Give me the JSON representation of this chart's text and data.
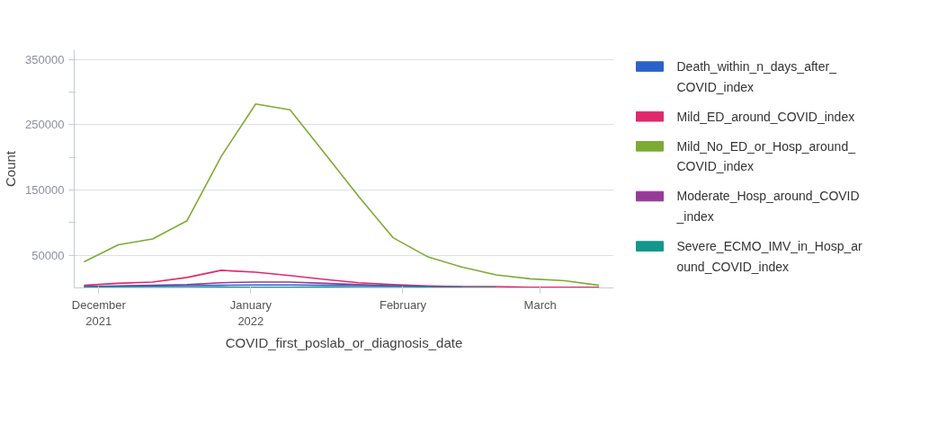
{
  "chart_data": {
    "type": "line",
    "xlabel": "COVID_first_poslab_or_diagnosis_date",
    "ylabel": "Count",
    "x": [
      "2021-11-28",
      "2021-12-05",
      "2021-12-12",
      "2021-12-19",
      "2021-12-26",
      "2022-01-02",
      "2022-01-09",
      "2022-01-16",
      "2022-01-23",
      "2022-01-30",
      "2022-02-06",
      "2022-02-13",
      "2022-02-20",
      "2022-02-27",
      "2022-03-06",
      "2022-03-13"
    ],
    "series": [
      {
        "name": "Death_within_n_days_after_COVID_index",
        "color": "#2a62c9",
        "values": [
          2000,
          2500,
          3000,
          3500,
          4000,
          4500,
          4500,
          4000,
          3500,
          3000,
          2500,
          null,
          null,
          null,
          null,
          null
        ]
      },
      {
        "name": "Mild_ED_around_COVID_index",
        "color": "#e0296b",
        "values": [
          4000,
          7000,
          9000,
          16000,
          27000,
          24000,
          19000,
          13000,
          8000,
          5000,
          3000,
          2000,
          2000,
          1000,
          1000,
          1000
        ]
      },
      {
        "name": "Mild_No_ED_or_Hosp_around_COVID_index",
        "color": "#7cab34",
        "values": [
          40000,
          66000,
          75000,
          103000,
          202000,
          282000,
          273000,
          207000,
          140000,
          77000,
          48000,
          32000,
          20000,
          14000,
          11000,
          4000
        ]
      },
      {
        "name": "Moderate_Hosp_around_COVID_index",
        "color": "#953b97",
        "values": [
          2000,
          3000,
          4000,
          5000,
          8000,
          9000,
          9000,
          7000,
          5000,
          3000,
          2000,
          1500,
          null,
          null,
          null,
          null
        ]
      },
      {
        "name": "Severe_ECMO_IMV_in_Hosp_around_COVID_index",
        "color": "#12978a",
        "values": [
          500,
          500,
          500,
          500,
          1000,
          1000,
          1000,
          1000,
          500,
          500,
          500,
          500,
          500,
          null,
          null,
          null
        ]
      }
    ],
    "xlim": [
      "2021-11-26",
      "2022-03-16"
    ],
    "xticks": [
      {
        "value": "2021-12-01",
        "label": "December\n2021"
      },
      {
        "value": "2022-01-01",
        "label": "January\n2022"
      },
      {
        "value": "2022-02-01",
        "label": "February"
      },
      {
        "value": "2022-03-01",
        "label": "March"
      }
    ],
    "ylim": [
      0,
      365000
    ],
    "yticks": [
      50000,
      {
        "value": 100000,
        "label": null
      },
      150000,
      {
        "value": 200000,
        "label": null
      },
      250000,
      {
        "value": 300000,
        "label": null
      },
      350000
    ],
    "grid": "y",
    "legend": "right"
  }
}
